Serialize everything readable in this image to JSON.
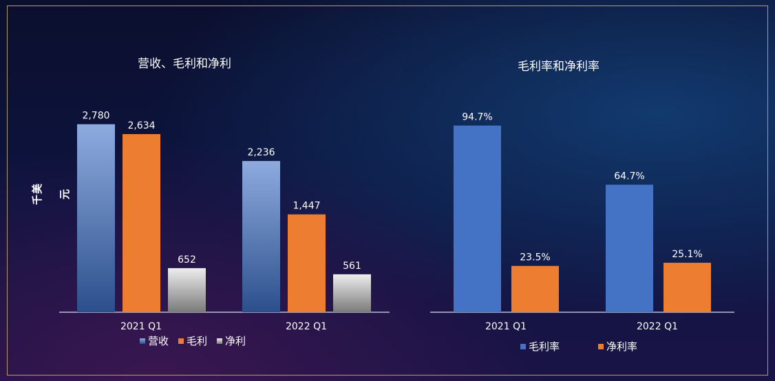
{
  "colors": {
    "revenue_top": "#8eabdf",
    "revenue_bottom": "#2c4f8c",
    "gross": "#ed7d31",
    "net_top": "#eeeeee",
    "net_bottom": "#7a7a7a",
    "blue": "#4472c4",
    "orange": "#ed7d31",
    "axis": "#b9bfd6"
  },
  "unit_label": "千美元",
  "chart_data": [
    {
      "type": "bar",
      "title": "营收、毛利和净利",
      "categories": [
        "2021 Q1",
        "2022 Q1"
      ],
      "series": [
        {
          "name": "营收",
          "values": [
            2780,
            2236
          ],
          "labels": [
            "2,780",
            "2,236"
          ]
        },
        {
          "name": "毛利",
          "values": [
            2634,
            1447
          ],
          "labels": [
            "2,634",
            "1,447"
          ]
        },
        {
          "name": "净利",
          "values": [
            652,
            561
          ],
          "labels": [
            "652",
            "561"
          ]
        }
      ],
      "ylabel": "千美元",
      "ylim": [
        0,
        3000
      ],
      "grid": false,
      "legend": "bottom-center"
    },
    {
      "type": "bar",
      "title": "毛利率和净利率",
      "categories": [
        "2021 Q1",
        "2022 Q1"
      ],
      "series": [
        {
          "name": "毛利率",
          "values": [
            94.7,
            64.7
          ],
          "labels": [
            "94.7%",
            "64.7%"
          ]
        },
        {
          "name": "净利率",
          "values": [
            23.5,
            25.1
          ],
          "labels": [
            "23.5%",
            "25.1%"
          ]
        }
      ],
      "ylim": [
        0,
        100
      ],
      "grid": false,
      "legend": "bottom-center"
    }
  ]
}
